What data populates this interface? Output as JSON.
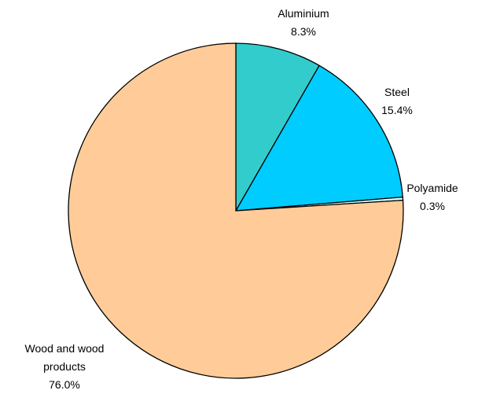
{
  "chart_data": {
    "type": "pie",
    "categories": [
      "Aluminium",
      "Steel",
      "Polyamide",
      "Wood and wood products"
    ],
    "values": [
      8.3,
      15.4,
      0.3,
      76.0
    ],
    "value_labels": [
      "8.3%",
      "15.4%",
      "0.3%",
      "76.0%"
    ],
    "colors": [
      "#33cccc",
      "#00ccff",
      "#ccffff",
      "#ffcc99"
    ]
  }
}
